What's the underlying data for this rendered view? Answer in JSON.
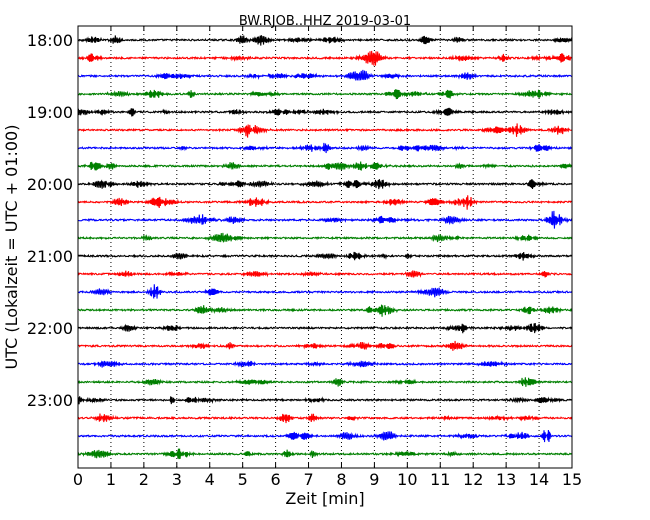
{
  "chart_data": {
    "type": "line",
    "title": "BW.RJOB..HHZ 2019-03-01",
    "xlabel": "Zeit  [min]",
    "ylabel": "UTC (Lokalzeit = UTC + 01:00)",
    "xlim": [
      0,
      15
    ],
    "x_ticks": [
      0,
      1,
      2,
      3,
      4,
      5,
      6,
      7,
      8,
      9,
      10,
      11,
      12,
      13,
      14,
      15
    ],
    "x_tick_labels": [
      "0",
      "1",
      "2",
      "3",
      "4",
      "5",
      "6",
      "7",
      "8",
      "9",
      "10",
      "11",
      "12",
      "13",
      "14",
      "15"
    ],
    "y_tick_labels": [
      "18:00",
      "19:00",
      "20:00",
      "21:00",
      "22:00",
      "23:00"
    ],
    "grid": "vertical dotted",
    "color_cycle": [
      "#000000",
      "#ff0000",
      "#0000ff",
      "#008000"
    ],
    "series": [
      {
        "start": "18:00"
      },
      {
        "start": "18:15"
      },
      {
        "start": "18:30"
      },
      {
        "start": "18:45"
      },
      {
        "start": "19:00"
      },
      {
        "start": "19:15"
      },
      {
        "start": "19:30"
      },
      {
        "start": "19:45"
      },
      {
        "start": "20:00"
      },
      {
        "start": "20:15"
      },
      {
        "start": "20:30"
      },
      {
        "start": "20:45"
      },
      {
        "start": "21:00"
      },
      {
        "start": "21:15"
      },
      {
        "start": "21:30"
      },
      {
        "start": "21:45"
      },
      {
        "start": "22:00"
      },
      {
        "start": "22:15"
      },
      {
        "start": "22:30"
      },
      {
        "start": "22:45"
      },
      {
        "start": "23:00"
      },
      {
        "start": "23:15"
      },
      {
        "start": "23:30"
      },
      {
        "start": "23:45"
      }
    ]
  }
}
